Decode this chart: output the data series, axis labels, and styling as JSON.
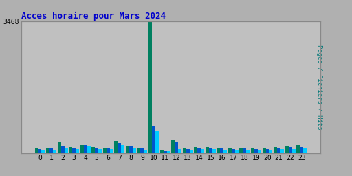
{
  "title": "Acces horaire pour Mars 2024",
  "ylabel_right": "Pages / Fichiers / Hits",
  "hours": [
    0,
    1,
    2,
    3,
    4,
    5,
    6,
    7,
    8,
    9,
    10,
    11,
    12,
    13,
    14,
    15,
    16,
    17,
    18,
    19,
    20,
    21,
    22,
    23
  ],
  "pages": [
    120,
    140,
    290,
    165,
    210,
    155,
    145,
    320,
    200,
    145,
    3468,
    85,
    340,
    125,
    155,
    155,
    145,
    135,
    145,
    135,
    145,
    155,
    175,
    205
  ],
  "fichiers": [
    105,
    115,
    185,
    135,
    205,
    130,
    130,
    265,
    175,
    125,
    720,
    65,
    285,
    95,
    130,
    130,
    120,
    110,
    115,
    105,
    110,
    130,
    150,
    165
  ],
  "hits": [
    82,
    90,
    130,
    100,
    170,
    100,
    100,
    205,
    130,
    90,
    570,
    55,
    110,
    78,
    100,
    100,
    90,
    85,
    90,
    80,
    85,
    100,
    110,
    130
  ],
  "color_pages": "#008060",
  "color_fichiers": "#0055cc",
  "color_hits": "#00ccff",
  "bg_color": "#b0b0b0",
  "plot_bg": "#c0c0c0",
  "title_color": "#0000cc",
  "ymax": 3468,
  "ytick_label": "3468",
  "bar_width": 0.3
}
